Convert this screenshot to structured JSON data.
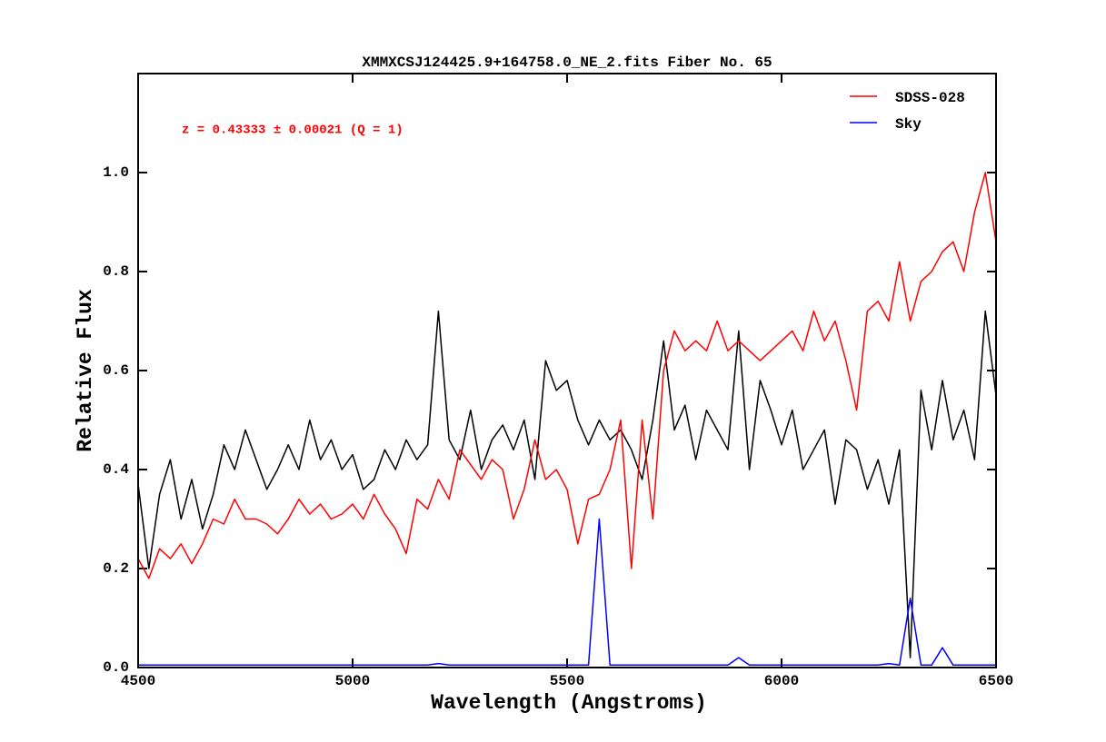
{
  "chart_data": {
    "type": "line",
    "title": "XMMXCSJ124425.9+164758.0_NE_2.fits Fiber No. 65",
    "xlabel": "Wavelength (Angstroms)",
    "ylabel": "Relative Flux",
    "annotation": "z = 0.43333 ± 0.00021 (Q = 1)",
    "annotation_color": "#ff0000",
    "xlim": [
      4500,
      6500
    ],
    "ylim": [
      0,
      1.2
    ],
    "xticks": [
      4500,
      5000,
      5500,
      6000,
      6500
    ],
    "yticks": [
      {
        "value": 0,
        "label": "0.0"
      },
      0.2,
      0.4,
      0.6,
      0.8,
      {
        "value": 1,
        "label": "1.0"
      }
    ],
    "legend": "upper right",
    "x": [
      4500,
      4525,
      4550,
      4575,
      4600,
      4625,
      4650,
      4675,
      4700,
      4725,
      4750,
      4775,
      4800,
      4825,
      4850,
      4875,
      4900,
      4925,
      4950,
      4975,
      5000,
      5025,
      5050,
      5075,
      5100,
      5125,
      5150,
      5175,
      5200,
      5225,
      5250,
      5275,
      5300,
      5325,
      5350,
      5375,
      5400,
      5425,
      5450,
      5475,
      5500,
      5525,
      5550,
      5575,
      5600,
      5625,
      5650,
      5675,
      5700,
      5725,
      5750,
      5775,
      5800,
      5825,
      5850,
      5875,
      5900,
      5925,
      5950,
      5975,
      6000,
      6025,
      6050,
      6075,
      6100,
      6125,
      6150,
      6175,
      6200,
      6225,
      6250,
      6275,
      6300,
      6325,
      6350,
      6375,
      6400,
      6425,
      6450,
      6475,
      6500
    ],
    "series": [
      {
        "color": "#000000",
        "values": [
          0.37,
          0.2,
          0.35,
          0.42,
          0.3,
          0.38,
          0.28,
          0.35,
          0.45,
          0.4,
          0.48,
          0.42,
          0.36,
          0.4,
          0.45,
          0.4,
          0.5,
          0.42,
          0.46,
          0.4,
          0.43,
          0.36,
          0.38,
          0.44,
          0.4,
          0.46,
          0.42,
          0.45,
          0.72,
          0.46,
          0.42,
          0.52,
          0.4,
          0.46,
          0.49,
          0.44,
          0.5,
          0.38,
          0.62,
          0.56,
          0.58,
          0.5,
          0.45,
          0.5,
          0.46,
          0.48,
          0.44,
          0.38,
          0.5,
          0.66,
          0.48,
          0.53,
          0.42,
          0.52,
          0.48,
          0.44,
          0.68,
          0.4,
          0.58,
          0.52,
          0.45,
          0.52,
          0.4,
          0.44,
          0.48,
          0.33,
          0.46,
          0.44,
          0.36,
          0.42,
          0.33,
          0.44,
          0.02,
          0.56,
          0.44,
          0.58,
          0.46,
          0.52,
          0.42,
          0.72,
          0.55
        ]
      },
      {
        "name": "SDSS-028",
        "color": "#ff0000",
        "values": [
          0.22,
          0.18,
          0.24,
          0.22,
          0.25,
          0.21,
          0.25,
          0.3,
          0.29,
          0.34,
          0.3,
          0.3,
          0.29,
          0.27,
          0.3,
          0.34,
          0.31,
          0.33,
          0.3,
          0.31,
          0.33,
          0.3,
          0.35,
          0.31,
          0.28,
          0.23,
          0.34,
          0.32,
          0.38,
          0.34,
          0.44,
          0.41,
          0.38,
          0.42,
          0.4,
          0.3,
          0.36,
          0.46,
          0.38,
          0.4,
          0.36,
          0.25,
          0.34,
          0.35,
          0.4,
          0.5,
          0.2,
          0.5,
          0.3,
          0.6,
          0.68,
          0.64,
          0.66,
          0.64,
          0.7,
          0.64,
          0.66,
          0.64,
          0.62,
          0.64,
          0.66,
          0.68,
          0.64,
          0.72,
          0.66,
          0.7,
          0.62,
          0.52,
          0.72,
          0.74,
          0.7,
          0.82,
          0.7,
          0.78,
          0.8,
          0.84,
          0.86,
          0.8,
          0.92,
          1.0,
          0.86
        ]
      },
      {
        "name": "Sky",
        "color": "#0000ff",
        "values": [
          0.005,
          0.005,
          0.005,
          0.005,
          0.005,
          0.005,
          0.005,
          0.005,
          0.005,
          0.005,
          0.005,
          0.005,
          0.005,
          0.005,
          0.005,
          0.005,
          0.005,
          0.005,
          0.005,
          0.005,
          0.005,
          0.005,
          0.005,
          0.005,
          0.005,
          0.005,
          0.005,
          0.005,
          0.008,
          0.005,
          0.005,
          0.005,
          0.005,
          0.005,
          0.005,
          0.005,
          0.005,
          0.005,
          0.005,
          0.005,
          0.005,
          0.005,
          0.005,
          0.3,
          0.005,
          0.005,
          0.005,
          0.005,
          0.005,
          0.005,
          0.005,
          0.005,
          0.005,
          0.005,
          0.005,
          0.005,
          0.02,
          0.005,
          0.005,
          0.005,
          0.005,
          0.005,
          0.005,
          0.005,
          0.005,
          0.005,
          0.005,
          0.005,
          0.005,
          0.005,
          0.008,
          0.005,
          0.14,
          0.005,
          0.005,
          0.04,
          0.005,
          0.005,
          0.005,
          0.005,
          0.005
        ]
      }
    ]
  }
}
